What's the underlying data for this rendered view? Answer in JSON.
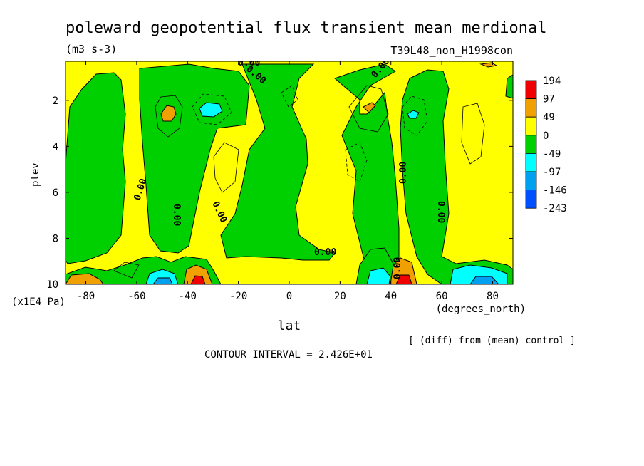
{
  "chart_data": {
    "type": "heatmap",
    "title": "poleward geopotential flux transient mean merdional",
    "units": "(m3 s-3)",
    "run_name": "T39L48_non_H1998con",
    "xlabel": "lat",
    "x_units": "(degrees_north)",
    "ylabel": "plev",
    "y_units": "(x1E4 Pa)",
    "xlim": [
      -88,
      88
    ],
    "ylim": [
      10,
      0.3
    ],
    "x_ticks": [
      -80,
      -60,
      -40,
      -20,
      0,
      20,
      40,
      60,
      80
    ],
    "x_tick_labels": [
      "-80",
      "-60",
      "-40",
      "-20",
      "0",
      "20",
      "40",
      "60",
      "80"
    ],
    "y_ticks": [
      2,
      4,
      6,
      8,
      10
    ],
    "y_tick_labels": [
      "2",
      "4",
      "6",
      "8",
      "10"
    ],
    "contour_interval": "CONTOUR INTERVAL = 2.426E+01",
    "note": "[ (diff) from (mean) control ]",
    "contour_label": "0.00",
    "colorbar": {
      "levels": [
        "194",
        "97",
        "49",
        "0",
        "-49",
        "-97",
        "-146",
        "-243"
      ],
      "colors": [
        "#f00000",
        "#f0a000",
        "#ffff00",
        "#00d000",
        "#00ffff",
        "#00a0f0",
        "#0050ff"
      ]
    },
    "lat_bands": [
      {
        "from": -88,
        "to": -82,
        "value": "positive"
      },
      {
        "from": -82,
        "to": -68,
        "value": "negative"
      },
      {
        "from": -68,
        "to": -56,
        "value": "positive"
      },
      {
        "from": -56,
        "to": -36,
        "value": "negative"
      },
      {
        "from": -36,
        "to": -8,
        "value": "positive"
      },
      {
        "from": -8,
        "to": 10,
        "value": "negative"
      },
      {
        "from": 10,
        "to": 35,
        "value": "positive"
      },
      {
        "from": 35,
        "to": 46,
        "value": "negative"
      },
      {
        "from": 46,
        "to": 62,
        "value": "positive"
      },
      {
        "from": 62,
        "to": 86,
        "value": "negative"
      },
      {
        "from": 86,
        "to": 88,
        "value": "positive"
      }
    ],
    "extrema": [
      {
        "lat": -48,
        "plev": 2.4,
        "value": 97
      },
      {
        "lat": -40,
        "plev": 2.3,
        "value": -97
      },
      {
        "lat": 32,
        "plev": 2.2,
        "value": 97
      },
      {
        "lat": 48,
        "plev": 2.4,
        "value": -97
      },
      {
        "lat": -84,
        "plev": 9.9,
        "value": 97
      },
      {
        "lat": -50,
        "plev": 9.8,
        "value": -146
      },
      {
        "lat": -37,
        "plev": 9.8,
        "value": 194
      },
      {
        "lat": 38,
        "plev": 9.6,
        "value": -97
      },
      {
        "lat": 48,
        "plev": 9.8,
        "value": 194
      },
      {
        "lat": 75,
        "plev": 9.6,
        "value": -146
      }
    ]
  }
}
